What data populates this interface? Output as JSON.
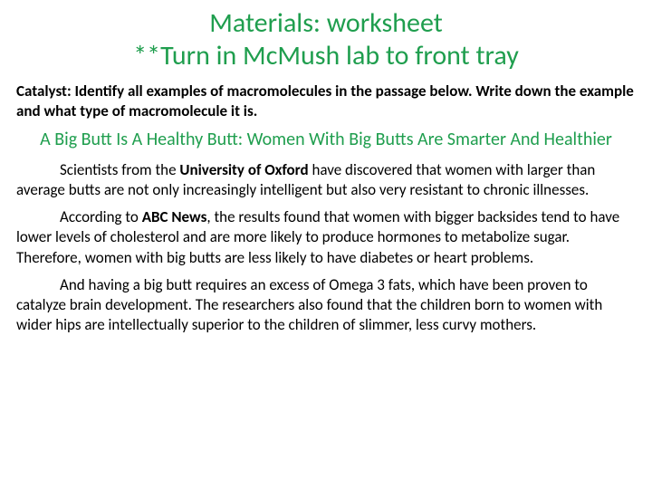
{
  "colors": {
    "green": "#1f9e4e",
    "black": "#000000",
    "background": "#ffffff"
  },
  "typography": {
    "title_fontsize": 30,
    "catalyst_fontsize": 17,
    "article_title_fontsize": 20,
    "paragraph_fontsize": 17,
    "font_family": "Calibri"
  },
  "title_line1": "Materials:  worksheet",
  "title_line2": "**Turn in McMush lab to front tray",
  "catalyst_text": "Catalyst:  Identify all examples of macromolecules in the passage below.  Write down the example and what type of macromolecule it is.",
  "article_title": "A Big Butt Is A Healthy Butt: Women With Big Butts Are Smarter And Healthier",
  "para1_part1": "Scientists from the ",
  "para1_bold": "University of Oxford",
  "para1_part2": " have discovered that women with larger than average butts are not only increasingly intelligent but also very resistant to chronic illnesses.",
  "para2_part1": "According to ",
  "para2_bold": "ABC News",
  "para2_part2": ", the results found that women with bigger backsides tend to have lower levels of cholesterol and are more likely to produce hormones to metabolize sugar. Therefore, women with big butts are less likely to have diabetes or heart problems.",
  "para3": "And having a big butt requires an excess of Omega 3 fats, which have been proven to catalyze brain development. The researchers also found that the children born to women with wider hips are intellectually superior to the children of slimmer, less curvy mothers."
}
